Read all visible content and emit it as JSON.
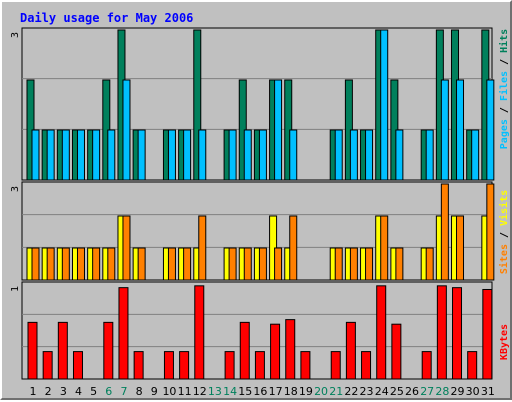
{
  "chart_data": [
    {
      "type": "bar",
      "title": "Daily usage for May 2006",
      "panel": "top",
      "ymax_label": "3",
      "ylim": [
        0,
        3
      ],
      "right_label": [
        "Pages",
        "Files",
        "Hits"
      ],
      "categories": [
        "1",
        "2",
        "3",
        "4",
        "5",
        "6",
        "7",
        "8",
        "9",
        "10",
        "11",
        "12",
        "13",
        "14",
        "15",
        "16",
        "17",
        "18",
        "19",
        "20",
        "21",
        "22",
        "23",
        "24",
        "25",
        "26",
        "27",
        "28",
        "29",
        "30",
        "31"
      ],
      "series": [
        {
          "name": "Hits",
          "color": "#00805c",
          "values": [
            2,
            1,
            1,
            1,
            1,
            2,
            3,
            1,
            0,
            1,
            1,
            3,
            0,
            1,
            2,
            1,
            2,
            2,
            0,
            0,
            1,
            2,
            1,
            3,
            2,
            0,
            1,
            3,
            3,
            1,
            3
          ]
        },
        {
          "name": "Files",
          "color": "#00c0ff",
          "values": [
            1,
            1,
            1,
            1,
            1,
            1,
            2,
            1,
            0,
            1,
            1,
            1,
            0,
            1,
            1,
            1,
            2,
            1,
            0,
            0,
            1,
            1,
            1,
            3,
            1,
            0,
            1,
            2,
            2,
            1,
            2
          ]
        },
        {
          "name": "Pages",
          "color": "#00c0ff",
          "values": [
            1,
            1,
            1,
            1,
            1,
            1,
            2,
            1,
            0,
            1,
            1,
            1,
            0,
            1,
            1,
            1,
            2,
            1,
            0,
            0,
            1,
            1,
            1,
            3,
            1,
            0,
            1,
            2,
            2,
            1,
            2
          ]
        }
      ]
    },
    {
      "type": "bar",
      "panel": "middle",
      "ymax_label": "3",
      "ylim": [
        0,
        3
      ],
      "right_label": [
        "Sites",
        "Visits"
      ],
      "categories": [
        "1",
        "2",
        "3",
        "4",
        "5",
        "6",
        "7",
        "8",
        "9",
        "10",
        "11",
        "12",
        "13",
        "14",
        "15",
        "16",
        "17",
        "18",
        "19",
        "20",
        "21",
        "22",
        "23",
        "24",
        "25",
        "26",
        "27",
        "28",
        "29",
        "30",
        "31"
      ],
      "series": [
        {
          "name": "Visits",
          "color": "#ffff00",
          "values": [
            1,
            1,
            1,
            1,
            1,
            1,
            2,
            1,
            0,
            1,
            1,
            1,
            0,
            1,
            1,
            1,
            2,
            1,
            0,
            0,
            1,
            1,
            1,
            2,
            1,
            0,
            1,
            2,
            2,
            0,
            2
          ]
        },
        {
          "name": "Sites",
          "color": "#ff8000",
          "values": [
            1,
            1,
            1,
            1,
            1,
            1,
            2,
            1,
            0,
            1,
            1,
            2,
            0,
            1,
            1,
            1,
            1,
            2,
            0,
            0,
            1,
            1,
            1,
            2,
            1,
            0,
            1,
            3,
            2,
            0,
            3
          ]
        }
      ]
    },
    {
      "type": "bar",
      "panel": "bottom",
      "ymax_label": "1",
      "right_label": [
        "KBytes"
      ],
      "categories": [
        "1",
        "2",
        "3",
        "4",
        "5",
        "6",
        "7",
        "8",
        "9",
        "10",
        "11",
        "12",
        "13",
        "14",
        "15",
        "16",
        "17",
        "18",
        "19",
        "20",
        "21",
        "22",
        "23",
        "24",
        "25",
        "26",
        "27",
        "28",
        "29",
        "30",
        "31"
      ],
      "weekend_days": [
        6,
        7,
        13,
        14,
        20,
        21,
        27,
        28
      ],
      "series": [
        {
          "name": "KBytes",
          "color": "#ff0000",
          "values": [
            0.62,
            0.3,
            0.62,
            0.3,
            0,
            0.62,
            1.0,
            0.3,
            0,
            0.3,
            0.3,
            1.02,
            0,
            0.3,
            0.62,
            0.3,
            0.6,
            0.65,
            0.3,
            0,
            0.3,
            0.62,
            0.3,
            1.02,
            0.6,
            0,
            0.3,
            1.02,
            1.0,
            0.3,
            0.98
          ]
        }
      ]
    }
  ],
  "colors": {
    "background": "#c0c0c0",
    "plot_background": "#c0c0c0",
    "title_color": "#0000ff",
    "weekday_label": "#000000",
    "weekend_label": "#00805c",
    "hits": "#00805c",
    "files": "#00c0ff",
    "visits": "#ffff00",
    "sites": "#ff8000",
    "kbytes": "#ff0000",
    "separator": "#000000"
  }
}
